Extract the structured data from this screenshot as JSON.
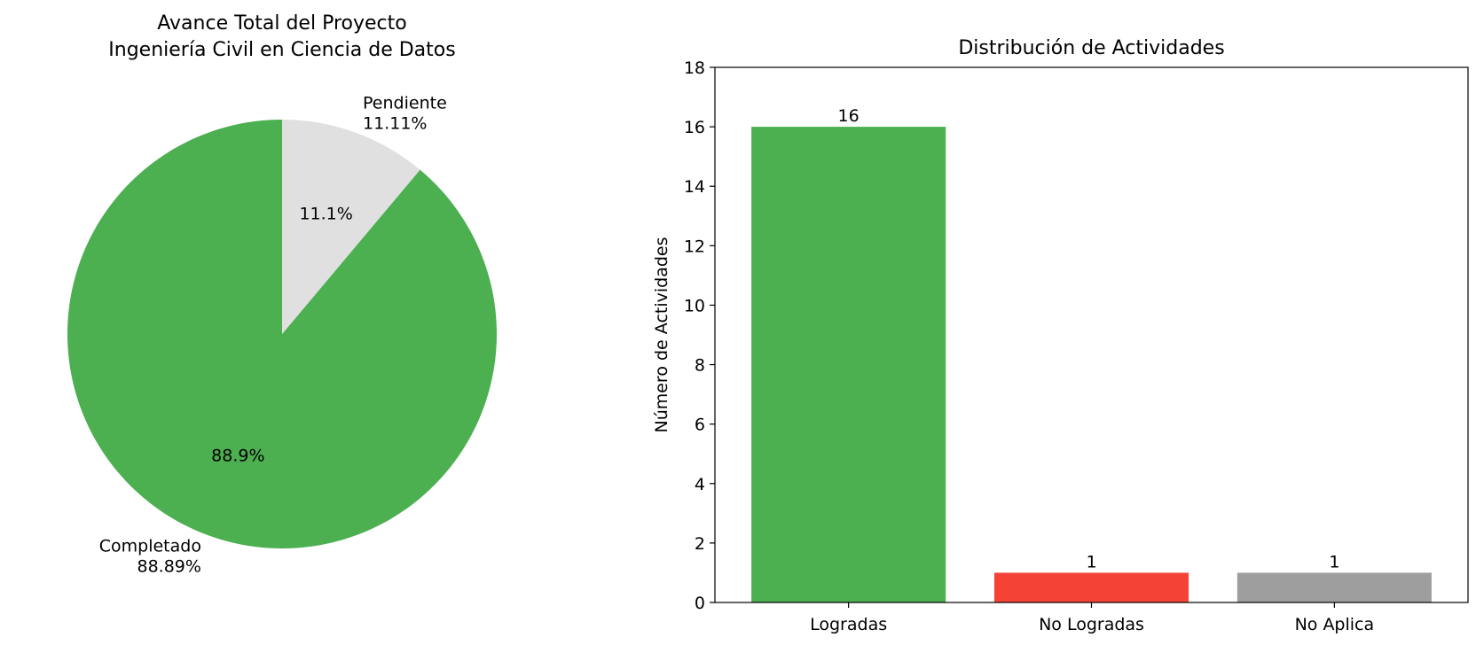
{
  "chart_data": [
    {
      "type": "pie",
      "title": "Avance Total del Proyecto\nIngeniería Civil en Ciencia de Datos",
      "slices": [
        {
          "name": "Completado",
          "value": 88.89,
          "label": "Completado\n88.89%",
          "pct_label": "88.9%",
          "color": "#4caf50"
        },
        {
          "name": "Pendiente",
          "value": 11.11,
          "label": "Pendiente\n11.11%",
          "pct_label": "11.1%",
          "color": "#e0e0e0"
        }
      ]
    },
    {
      "type": "bar",
      "title": "Distribución de Actividades",
      "xlabel": "",
      "ylabel": "Número de Actividades",
      "categories": [
        "Logradas",
        "No Logradas",
        "No Aplica"
      ],
      "values": [
        16,
        1,
        1
      ],
      "value_labels": [
        "16",
        "1",
        "1"
      ],
      "colors": [
        "#4caf50",
        "#f44336",
        "#9e9e9e"
      ],
      "ylim": [
        0,
        18
      ],
      "yticks": [
        "0",
        "2",
        "4",
        "6",
        "8",
        "10",
        "12",
        "14",
        "16",
        "18"
      ],
      "grid": false,
      "legend": "none"
    }
  ]
}
